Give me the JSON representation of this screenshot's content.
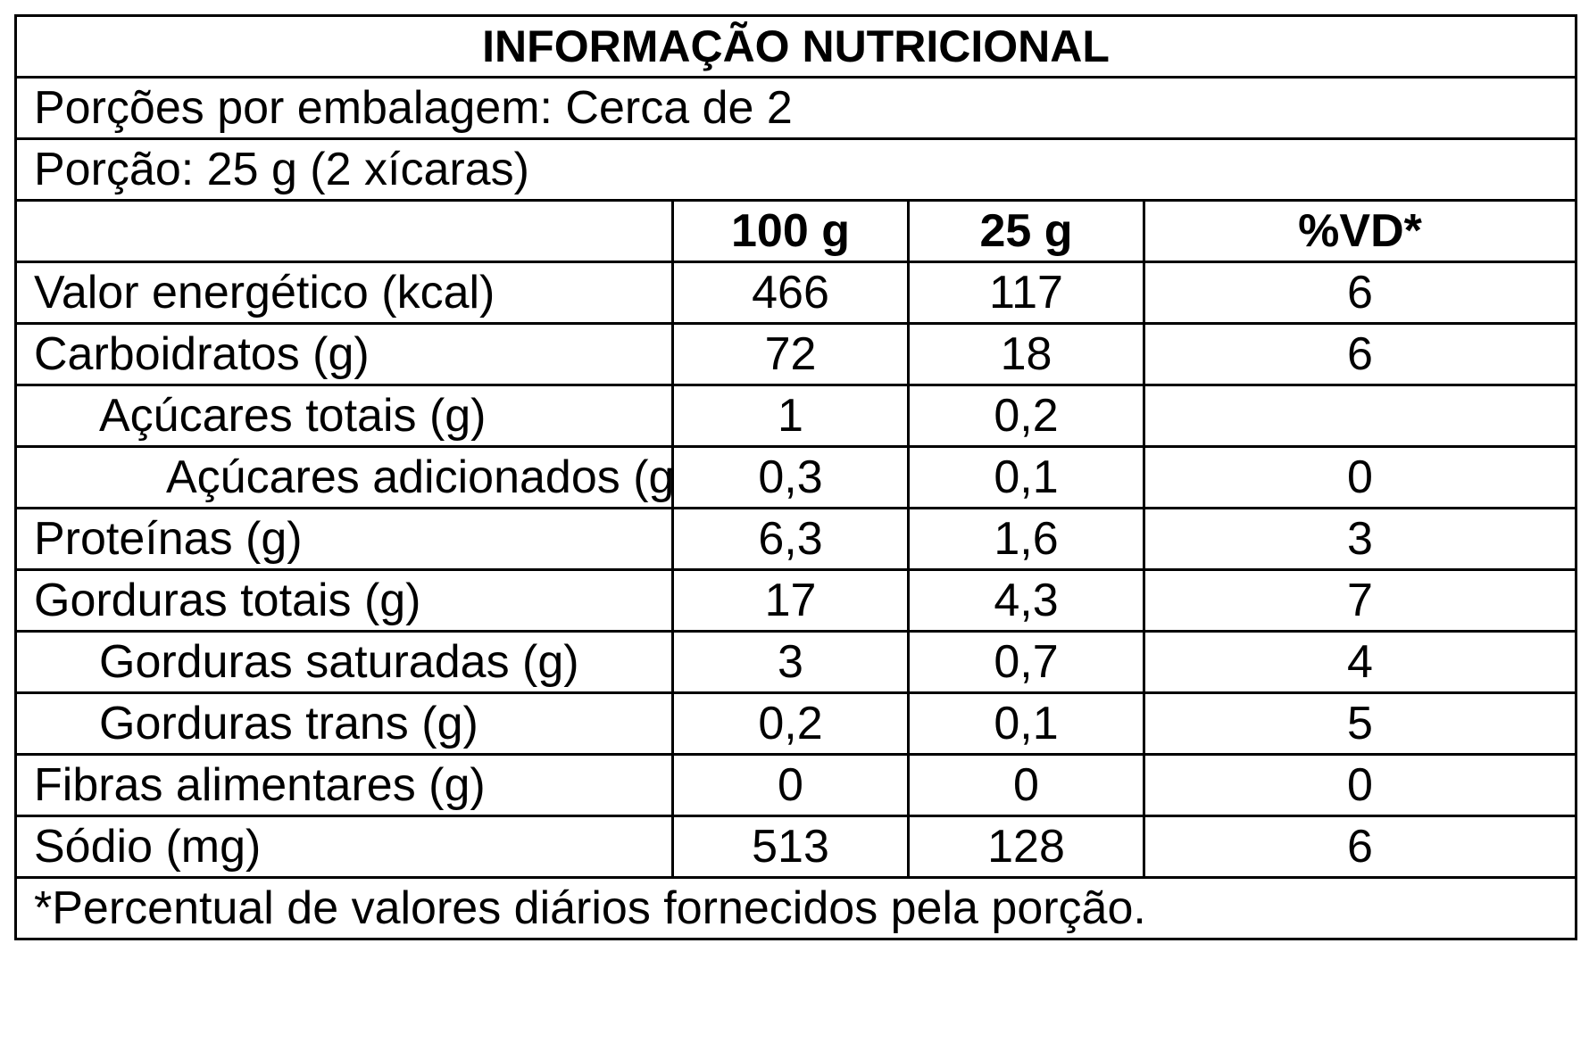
{
  "title": "INFORMAÇÃO NUTRICIONAL",
  "servings_per_package": "Porções por embalagem: Cerca de 2",
  "serving_size": "Porção: 25 g (2 xícaras)",
  "columns": [
    "",
    "100 g",
    "25 g",
    "%VD*"
  ],
  "rows": [
    {
      "name": "Valor energético (kcal)",
      "per100": "466",
      "perServing": "117",
      "dv": "6"
    },
    {
      "name": "Carboidratos (g)",
      "per100": "72",
      "perServing": "18",
      "dv": "6"
    },
    {
      "name": "Açúcares totais (g)",
      "per100": "1",
      "perServing": "0,2",
      "dv": ""
    },
    {
      "name": "Açúcares adicionados (g)",
      "per100": "0,3",
      "perServing": "0,1",
      "dv": "0"
    },
    {
      "name": "Proteínas (g)",
      "per100": "6,3",
      "perServing": "1,6",
      "dv": "3"
    },
    {
      "name": "Gorduras totais (g)",
      "per100": "17",
      "perServing": "4,3",
      "dv": "7"
    },
    {
      "name": "Gorduras saturadas (g)",
      "per100": "3",
      "perServing": "0,7",
      "dv": "4"
    },
    {
      "name": "Gorduras trans (g)",
      "per100": "0,2",
      "perServing": "0,1",
      "dv": "5"
    },
    {
      "name": "Fibras alimentares (g)",
      "per100": "0",
      "perServing": "0",
      "dv": "0"
    },
    {
      "name": "Sódio (mg)",
      "per100": "513",
      "perServing": "128",
      "dv": "6"
    }
  ],
  "footnote": "*Percentual de valores diários fornecidos pela porção."
}
